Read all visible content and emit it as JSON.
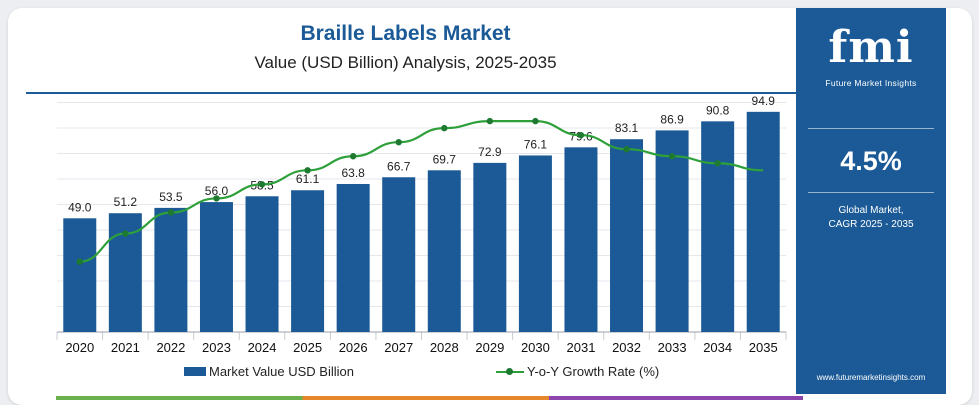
{
  "header": {
    "title": "Braille Labels Market",
    "subtitle": "Value (USD Billion) Analysis, 2025-2035"
  },
  "sidebar": {
    "logo_text": "fmi",
    "logo_tagline": "Future Market Insights",
    "cagr_value": "4.5%",
    "cagr_label_line1": "Global Market,",
    "cagr_label_line2": "CAGR 2025 - 2035",
    "website": "www.futuremarketinsights.com"
  },
  "legend": {
    "bar_label": "Market Value USD Billion",
    "line_label": "Y-o-Y Growth Rate (%)"
  },
  "colors": {
    "bar": "#1b5a96",
    "line": "#2ea03a",
    "line_marker": "#1e7a31",
    "sidebar": "#1b5a96",
    "title": "#1b5a96"
  },
  "chart_data": {
    "type": "bar",
    "categories": [
      "2020",
      "2021",
      "2022",
      "2023",
      "2024",
      "2025",
      "2026",
      "2027",
      "2028",
      "2029",
      "2030",
      "2031",
      "2032",
      "2033",
      "2034",
      "2035"
    ],
    "series": [
      {
        "name": "Market Value USD Billion",
        "type": "bar",
        "values": [
          49.0,
          51.2,
          53.5,
          56.0,
          58.5,
          61.1,
          63.8,
          66.7,
          69.7,
          72.9,
          76.1,
          79.6,
          83.1,
          86.9,
          90.8,
          94.9
        ],
        "labels": [
          "49.0",
          "51.2",
          "53.5",
          "56.0",
          "58.5",
          "61.1",
          "63.8",
          "66.7",
          "69.7",
          "72.9",
          "76.1",
          "79.6",
          "83.1",
          "86.9",
          "90.8",
          "94.9"
        ]
      },
      {
        "name": "Y-o-Y Growth Rate (%)",
        "type": "line",
        "values": [
          4.2,
          4.4,
          4.55,
          4.65,
          4.75,
          4.85,
          4.95,
          5.05,
          5.15,
          5.2,
          5.2,
          5.1,
          5.0,
          4.95,
          4.9,
          4.85
        ]
      }
    ],
    "ylim": [
      0,
      100
    ],
    "y2lim": [
      3.7,
      5.35
    ],
    "grid": true,
    "legend_position": "bottom"
  }
}
